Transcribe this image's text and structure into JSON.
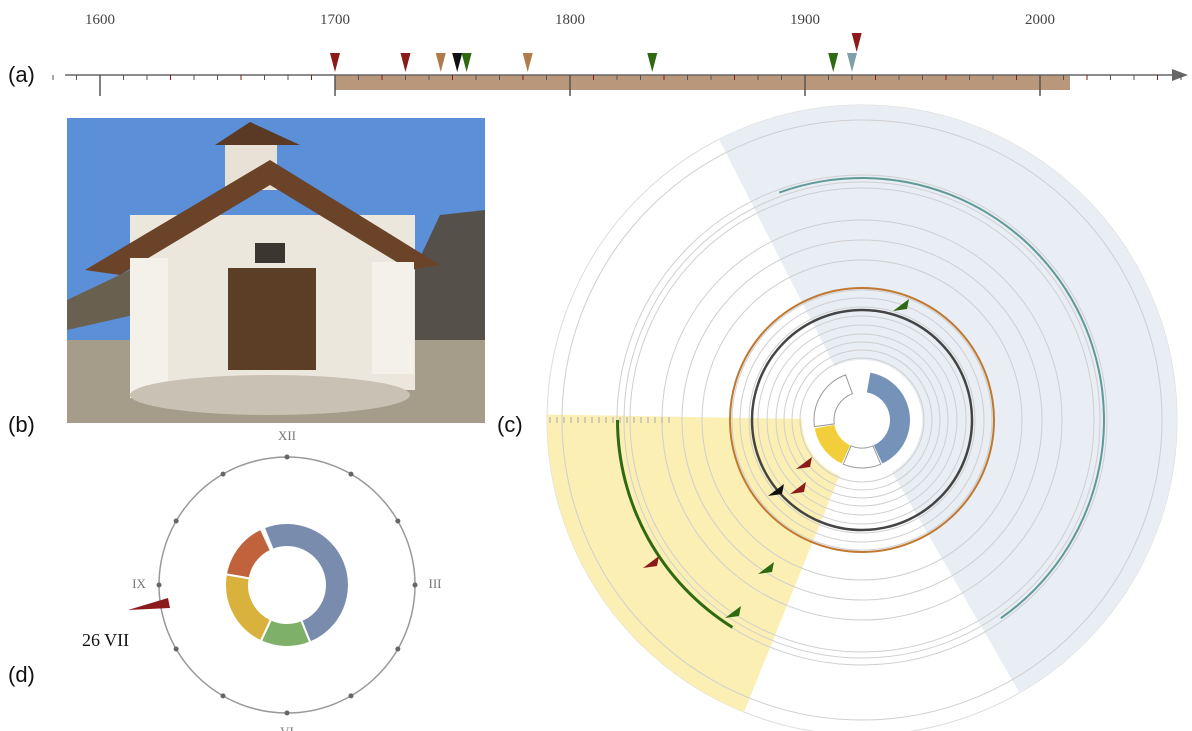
{
  "panels": {
    "a": "(a)",
    "b": "(b)",
    "c": "(c)",
    "d": "(d)"
  },
  "timeline": {
    "ticks": [
      1600,
      1700,
      1800,
      1900,
      2000
    ],
    "events": [
      {
        "year": 1700,
        "color": "#8b1a1a"
      },
      {
        "year": 1730,
        "color": "#8b1a1a"
      },
      {
        "year": 1745,
        "color": "#b07a4a"
      },
      {
        "year": 1752,
        "color": "#111111"
      },
      {
        "year": 1756,
        "color": "#2e6a12"
      },
      {
        "year": 1782,
        "color": "#b07a4a"
      },
      {
        "year": 1835,
        "color": "#2e6a12"
      },
      {
        "year": 1912,
        "color": "#2e6a12"
      },
      {
        "year": 1920,
        "color": "#7fa0a8"
      },
      {
        "year": 1922,
        "color": "#8b1a1a"
      }
    ]
  },
  "clock": {
    "hours": [
      "XII",
      "III",
      "VI",
      "IX"
    ],
    "date": "26 VII"
  }
}
